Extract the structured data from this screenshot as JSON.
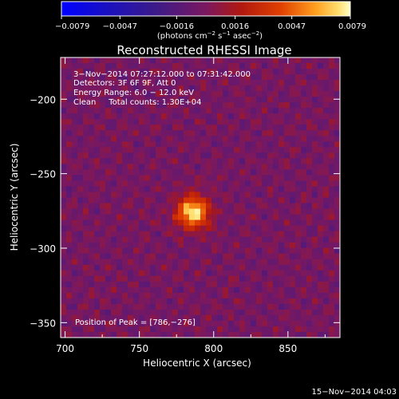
{
  "chart_data": {
    "type": "heatmap",
    "title": "Reconstructed RHESSI Image",
    "xlabel": "Heliocentric X (arcsec)",
    "ylabel": "Heliocentric Y (arcsec)",
    "xlim": [
      697,
      885
    ],
    "ylim": [
      -360,
      -172
    ],
    "x_ticks": [
      700,
      750,
      800,
      850
    ],
    "y_ticks": [
      -200,
      -250,
      -300,
      -350
    ],
    "x_tick_labels": [
      "700",
      "750",
      "800",
      "850"
    ],
    "y_tick_labels": [
      "−200",
      "−250",
      "−300",
      "−350"
    ],
    "colorbar": {
      "min": -0.0079,
      "max": 0.0079,
      "tick_values": [
        -0.0079,
        -0.0047,
        -0.0016,
        0.0016,
        0.0047,
        0.0079
      ],
      "tick_labels": [
        "−0.0079",
        "−0.0047",
        "−0.0016",
        "0.0016",
        "0.0047",
        "0.0079"
      ],
      "unit_label_parts": [
        "(photons cm",
        "−2",
        " s",
        "−1",
        " asec",
        "−2",
        ")"
      ]
    },
    "annotations": [
      "3−Nov−2014 07:27:12.000 to 07:31:42.000",
      "Detectors: 3F 6F 9F, Att 0",
      "Energy Range: 6.0 − 12.0 keV",
      "Clean     Total counts: 1.30E+04"
    ],
    "peak_label": "Position of Peak = [786,−276]",
    "peak": {
      "x": 786,
      "y": -276,
      "value": 0.0079
    },
    "grid": false
  },
  "footer": {
    "timestamp": "15−Nov−2014 04:03"
  }
}
